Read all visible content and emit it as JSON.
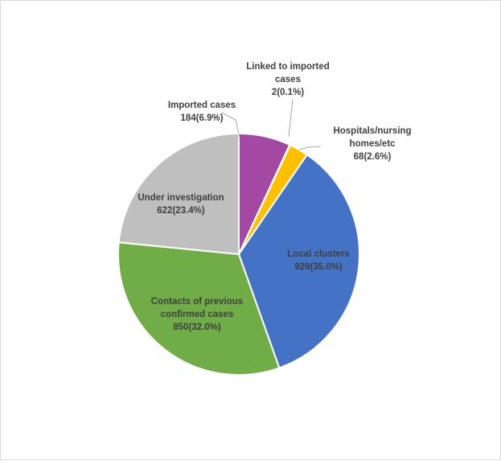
{
  "chart_data": {
    "type": "pie",
    "slices": [
      {
        "name": "Imported cases",
        "value": 184,
        "percent_label": "184(6.9%)",
        "color": "#a349a4"
      },
      {
        "name": "Linked to imported cases",
        "value": 2,
        "percent_label": "2(0.1%)",
        "color": "#2e75b6"
      },
      {
        "name": "Hospitals/nursing homes/etc",
        "value": 68,
        "percent_label": "68(2.6%)",
        "color": "#ffc000"
      },
      {
        "name": "Local clusters",
        "value": 929,
        "percent_label": "929(35.0%)",
        "color": "#4472c4"
      },
      {
        "name": "Contacts of previous confirmed cases",
        "value": 850,
        "percent_label": "850(32.0%)",
        "color": "#70ad47"
      },
      {
        "name": "Under investigation",
        "value": 622,
        "percent_label": "622(23.4%)",
        "color": "#bfbfbf"
      }
    ],
    "label_lines": {
      "Imported cases": [
        "Imported cases",
        "184(6.9%)"
      ],
      "Linked to imported cases": [
        "Linked to imported",
        "cases",
        "2(0.1%)"
      ],
      "Hospitals/nursing homes/etc": [
        "Hospitals/nursing",
        "homes/etc",
        "68(2.6%)"
      ],
      "Local clusters": [
        "Local clusters",
        "929(35.0%)"
      ],
      "Contacts of previous confirmed cases": [
        "Contacts of previous",
        "confirmed cases",
        "850(32.0%)"
      ],
      "Under investigation": [
        "Under investigation",
        "622(23.4%)"
      ]
    },
    "legend": "none",
    "start_angle": "12 o'clock, clockwise"
  }
}
